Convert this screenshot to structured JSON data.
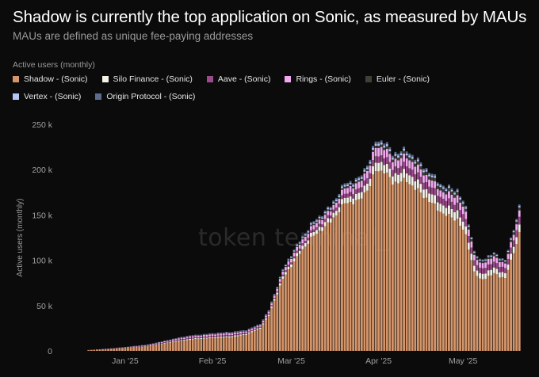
{
  "header": {
    "title": "Shadow is currently the top application on Sonic, as measured by MAUs",
    "subtitle": "MAUs are defined as unique fee-paying addresses"
  },
  "legend": {
    "title": "Active users (monthly)",
    "items": [
      {
        "label": "Shadow - (Sonic)",
        "color": "#d4956a"
      },
      {
        "label": "Silo Finance - (Sonic)",
        "color": "#f4f1e6"
      },
      {
        "label": "Aave - (Sonic)",
        "color": "#9b4a8a"
      },
      {
        "label": "Rings - (Sonic)",
        "color": "#f0a8ee"
      },
      {
        "label": "Euler - (Sonic)",
        "color": "#3d4236"
      },
      {
        "label": "Vertex - (Sonic)",
        "color": "#b4c6f4"
      },
      {
        "label": "Origin Protocol - (Sonic)",
        "color": "#5c6c8c"
      }
    ]
  },
  "watermark": "token terminal_",
  "chart_data": {
    "type": "bar",
    "stacked": true,
    "title": "Shadow is currently the top application on Sonic, as measured by MAUs",
    "ylabel": "Active users (monthly)",
    "ylim": [
      0,
      250000
    ],
    "yticks": [
      0,
      50000,
      100000,
      150000,
      200000,
      250000
    ],
    "ytick_labels": [
      "0",
      "50 k",
      "100 k",
      "150 k",
      "200 k",
      "250 k"
    ],
    "xtick_labels": [
      {
        "label": "Jan '25",
        "day": 22
      },
      {
        "label": "Feb '25",
        "day": 53
      },
      {
        "label": "Mar '25",
        "day": 81
      },
      {
        "label": "Apr '25",
        "day": 112
      },
      {
        "label": "May '25",
        "day": 142
      }
    ],
    "grid": false,
    "x_start": "2024-12-10",
    "num_days": 163,
    "series_names": [
      "Shadow - (Sonic)",
      "Silo Finance - (Sonic)",
      "Aave - (Sonic)",
      "Rings - (Sonic)",
      "Euler - (Sonic)",
      "Vertex - (Sonic)",
      "Origin Protocol - (Sonic)"
    ],
    "total_keyframes": [
      [
        0,
        0
      ],
      [
        8,
        0
      ],
      [
        9,
        1000
      ],
      [
        18,
        3000
      ],
      [
        30,
        7000
      ],
      [
        40,
        14000
      ],
      [
        45,
        17000
      ],
      [
        55,
        20000
      ],
      [
        60,
        21000
      ],
      [
        65,
        23000
      ],
      [
        70,
        30000
      ],
      [
        73,
        45000
      ],
      [
        78,
        90000
      ],
      [
        82,
        112000
      ],
      [
        88,
        140000
      ],
      [
        95,
        160000
      ],
      [
        100,
        185000
      ],
      [
        105,
        190000
      ],
      [
        109,
        212000
      ],
      [
        111,
        232000
      ],
      [
        114,
        232000
      ],
      [
        117,
        218000
      ],
      [
        122,
        222000
      ],
      [
        130,
        198000
      ],
      [
        135,
        182000
      ],
      [
        140,
        178000
      ],
      [
        143,
        158000
      ],
      [
        146,
        110000
      ],
      [
        148,
        100000
      ],
      [
        153,
        108000
      ],
      [
        157,
        100000
      ],
      [
        160,
        135000
      ],
      [
        163,
        172000
      ],
      [
        164,
        192000
      ],
      [
        165,
        195000
      ]
    ],
    "composition_keyframes": [
      {
        "day": 0,
        "shares": [
          0.72,
          0.06,
          0.06,
          0.1,
          0.02,
          0.02,
          0.02
        ]
      },
      {
        "day": 60,
        "shares": [
          0.72,
          0.06,
          0.06,
          0.1,
          0.02,
          0.02,
          0.02
        ]
      },
      {
        "day": 75,
        "shares": [
          0.88,
          0.03,
          0.02,
          0.04,
          0.01,
          0.01,
          0.01
        ]
      },
      {
        "day": 95,
        "shares": [
          0.89,
          0.03,
          0.02,
          0.03,
          0.01,
          0.01,
          0.01
        ]
      },
      {
        "day": 110,
        "shares": [
          0.86,
          0.04,
          0.03,
          0.04,
          0.01,
          0.01,
          0.01
        ]
      },
      {
        "day": 135,
        "shares": [
          0.83,
          0.05,
          0.04,
          0.04,
          0.02,
          0.01,
          0.01
        ]
      },
      {
        "day": 150,
        "shares": [
          0.78,
          0.06,
          0.06,
          0.06,
          0.02,
          0.01,
          0.01
        ]
      },
      {
        "day": 165,
        "shares": [
          0.82,
          0.05,
          0.05,
          0.04,
          0.02,
          0.01,
          0.01
        ]
      }
    ]
  }
}
